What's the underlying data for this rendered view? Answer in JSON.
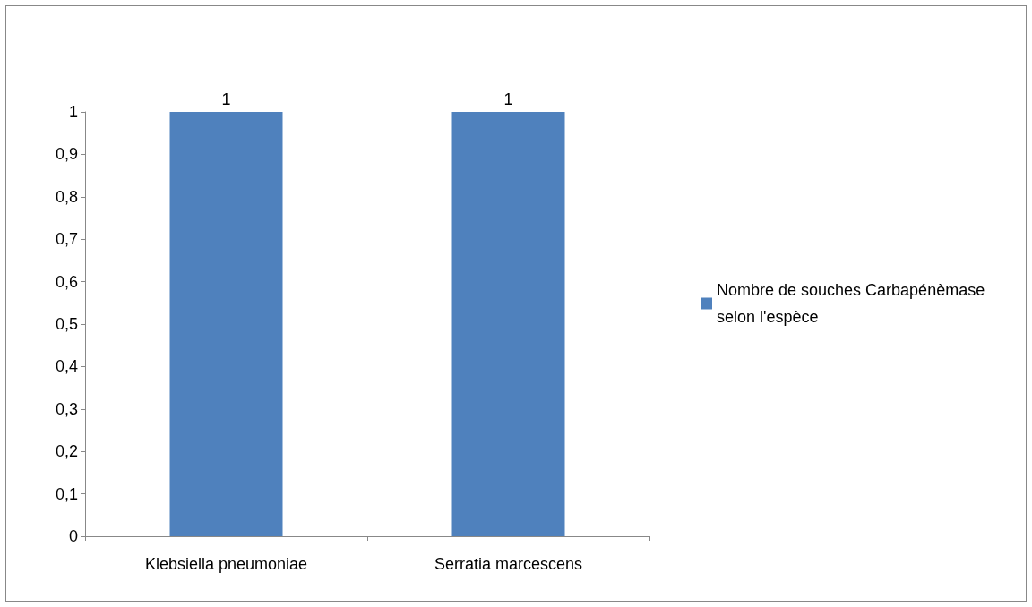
{
  "chart_data": {
    "type": "bar",
    "categories": [
      "Klebsiella pneumoniae",
      "Serratia marcescens"
    ],
    "series": [
      {
        "name": "Nombre de souches Carbapénèmase selon l'espèce",
        "color": "#4f81bd",
        "values": [
          1,
          1
        ]
      }
    ],
    "ylim": [
      0,
      1
    ],
    "yticks": [
      0,
      {
        "value": 0.1,
        "label": "0,1"
      },
      {
        "value": 0.2,
        "label": "0,2"
      },
      {
        "value": 0.3,
        "label": "0,3"
      },
      {
        "value": 0.4,
        "label": "0,4"
      },
      {
        "value": 0.5,
        "label": "0,5"
      },
      {
        "value": 0.6,
        "label": "0,6"
      },
      {
        "value": 0.7,
        "label": "0,7"
      },
      {
        "value": 0.8,
        "label": "0,8"
      },
      {
        "value": 0.9,
        "label": "0,9"
      },
      1
    ],
    "data_labels": true,
    "grid": false,
    "legend": "right"
  }
}
